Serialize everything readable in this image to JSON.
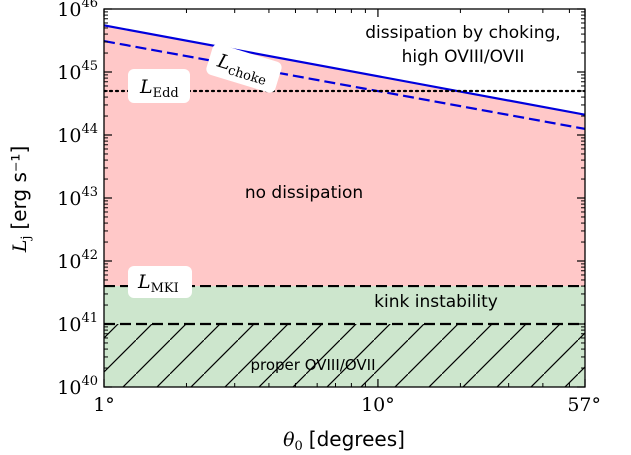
{
  "chart_data": {
    "type": "area",
    "x_scale": "log",
    "y_scale": "log",
    "xlim": [
      1,
      57
    ],
    "ylim": [
      1e+40,
      1e+46
    ],
    "xlabel": {
      "symbol": "θ",
      "subscript": "0",
      "unit": "[degrees]"
    },
    "ylabel": {
      "symbol": "L",
      "subscript": "j",
      "unit": "[erg s⁻¹]"
    },
    "x_ticks": [
      {
        "value": 1,
        "label": "1°"
      },
      {
        "value": 10,
        "label": "10°"
      },
      {
        "value": 57,
        "label": "57°"
      }
    ],
    "y_ticks": [
      {
        "value": 1e+40,
        "base": "10",
        "exp": "40"
      },
      {
        "value": 1e+41,
        "base": "10",
        "exp": "41"
      },
      {
        "value": 1e+42,
        "base": "10",
        "exp": "42"
      },
      {
        "value": 1e+43,
        "base": "10",
        "exp": "43"
      },
      {
        "value": 1e+44,
        "base": "10",
        "exp": "44"
      },
      {
        "value": 1e+45,
        "base": "10",
        "exp": "45"
      },
      {
        "value": 1e+46,
        "base": "10",
        "exp": "46"
      }
    ],
    "lines": [
      {
        "name": "L_choke (solid)",
        "style": "solid",
        "color": "#0000dd",
        "x": [
          1,
          57
        ],
        "y": [
          5.5e+45,
          2.1e+44
        ]
      },
      {
        "name": "L_choke (dashed)",
        "style": "dashed",
        "color": "#0000dd",
        "x": [
          1,
          57
        ],
        "y": [
          3.1e+45,
          1.25e+44
        ]
      },
      {
        "name": "L_Edd",
        "style": "dotted",
        "color": "#000000",
        "x": [
          1,
          57
        ],
        "y": [
          5e+44,
          5e+44
        ]
      },
      {
        "name": "L_MKI",
        "style": "dashed",
        "color": "#000000",
        "x": [
          1,
          57
        ],
        "y": [
          4e+41,
          4e+41
        ]
      },
      {
        "name": "OVIII/OVII limit",
        "style": "dashed",
        "color": "#000000",
        "x": [
          1,
          57
        ],
        "y": [
          1e+41,
          1e+41
        ]
      }
    ],
    "regions": [
      {
        "name": "no dissipation",
        "color": "#ffc8c8",
        "y_range": [
          4e+41,
          "L_choke (solid)"
        ]
      },
      {
        "name": "kink instability",
        "color": "#cde6cd",
        "y_range": [
          1e+40,
          4e+41
        ]
      },
      {
        "name": "proper OVIII/OVII",
        "hatch": "//",
        "y_range": [
          1e+40,
          1e+41
        ]
      }
    ]
  },
  "annotations": {
    "dissipation_line1": "dissipation by choking,",
    "dissipation_line2": "high OVIII/OVII",
    "no_dissipation": "no dissipation",
    "kink": "kink instability",
    "proper": "proper OVIII/OVII",
    "l_choke": {
      "symbol": "L",
      "subscript": "choke"
    },
    "l_edd": {
      "symbol": "L",
      "subscript": "Edd"
    },
    "l_mki": {
      "symbol": "L",
      "subscript": "MKI"
    }
  }
}
